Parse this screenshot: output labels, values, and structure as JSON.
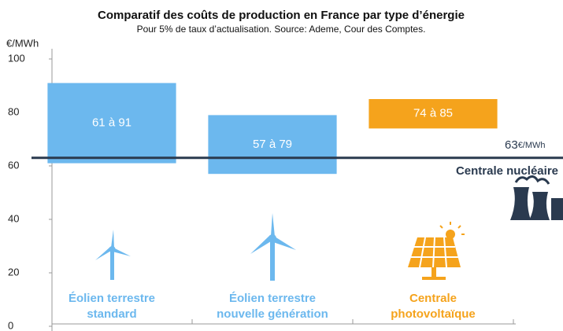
{
  "chart_data": {
    "type": "range_bar",
    "title": "Comparatif des coûts de production en France par type d’énergie",
    "subtitle": "Pour 5% de taux d’actualisation. Source: Ademe, Cour des Comptes.",
    "y_label": "€/MWh",
    "categories": [
      [
        "Éolien terrestre",
        "standard"
      ],
      [
        "Éolien terrestre",
        "nouvelle génération"
      ],
      [
        "Centrale",
        "photovoltaïque"
      ]
    ],
    "low": [
      61,
      57,
      74
    ],
    "high": [
      91,
      79,
      85
    ],
    "value_labels": [
      "61 à 91",
      "57 à 79",
      "74 à 85"
    ],
    "colors": [
      "#6cb8ee",
      "#6cb8ee",
      "#f5a31c"
    ],
    "label_colors": [
      "#6cb8ee",
      "#6cb8ee",
      "#f5a31c"
    ],
    "ylim": [
      0,
      100
    ],
    "yticks": [
      0,
      20,
      40,
      60,
      80,
      100
    ],
    "reference": {
      "value": 63,
      "unit": "€/MWh",
      "label": "Centrale nucléaire",
      "color": "#2a3a4f"
    }
  }
}
